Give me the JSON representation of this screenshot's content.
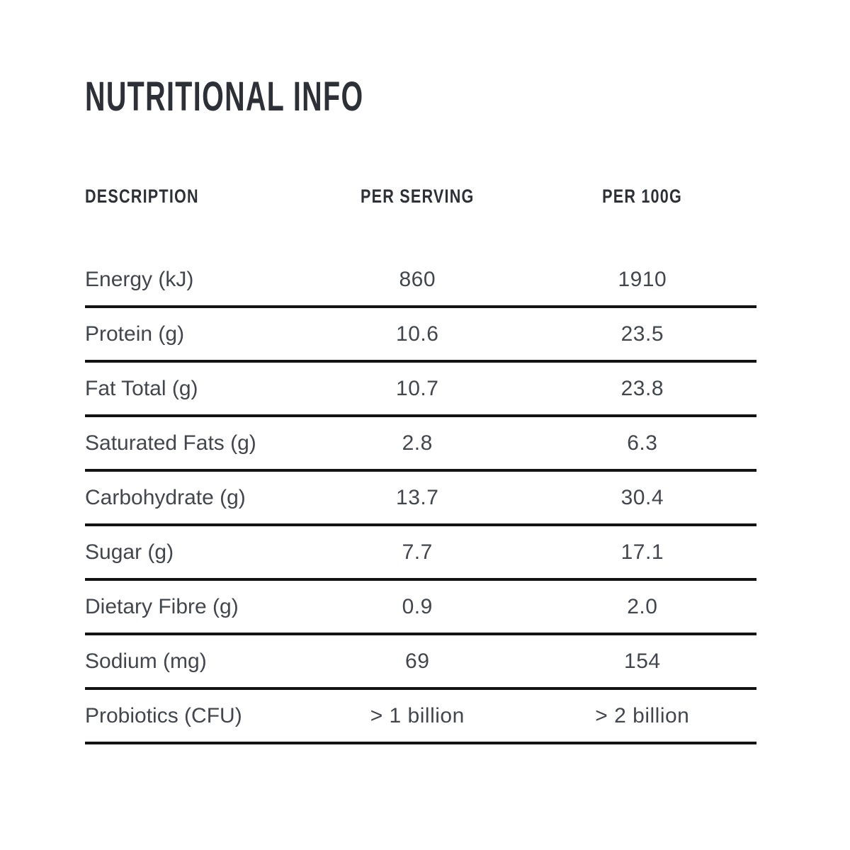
{
  "title": "NUTRITIONAL INFO",
  "table": {
    "columns": [
      {
        "label": "DESCRIPTION"
      },
      {
        "label": "PER SERVING"
      },
      {
        "label": "PER 100G"
      }
    ],
    "rows": [
      {
        "name": "Energy (kJ)",
        "per_serving": "860",
        "per_100g": "1910"
      },
      {
        "name": "Protein (g)",
        "per_serving": "10.6",
        "per_100g": "23.5"
      },
      {
        "name": "Fat Total (g)",
        "per_serving": "10.7",
        "per_100g": "23.8"
      },
      {
        "name": "Saturated Fats (g)",
        "per_serving": "2.8",
        "per_100g": "6.3"
      },
      {
        "name": "Carbohydrate (g)",
        "per_serving": "13.7",
        "per_100g": "30.4"
      },
      {
        "name": "Sugar (g)",
        "per_serving": "7.7",
        "per_100g": "17.1"
      },
      {
        "name": "Dietary Fibre (g)",
        "per_serving": "0.9",
        "per_100g": "2.0"
      },
      {
        "name": "Sodium (mg)",
        "per_serving": "69",
        "per_100g": "154"
      },
      {
        "name": "Probiotics (CFU)",
        "per_serving": "> 1 billion",
        "per_100g": "> 2 billion"
      }
    ]
  },
  "colors": {
    "background": "#ffffff",
    "heading_text": "#2d3037",
    "body_text": "#43464d",
    "rule_line": "#131313"
  }
}
